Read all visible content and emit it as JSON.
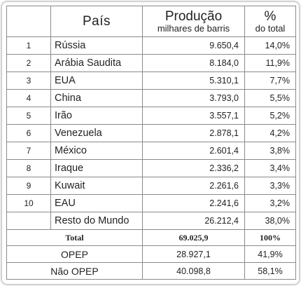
{
  "header": {
    "country": "País",
    "production": "Produção",
    "production_unit": "milhares de barris",
    "percent": "%",
    "percent_sub": "do total"
  },
  "rows": [
    {
      "rank": "1",
      "country": "Rússia",
      "production": "9.650,4",
      "percent": "14,0%"
    },
    {
      "rank": "2",
      "country": "Arábia Saudita",
      "production": "8.184,0",
      "percent": "11,9%"
    },
    {
      "rank": "3",
      "country": "EUA",
      "production": "5.310,1",
      "percent": "7,7%"
    },
    {
      "rank": "4",
      "country": "China",
      "production": "3.793,0",
      "percent": "5,5%"
    },
    {
      "rank": "5",
      "country": "Irão",
      "production": "3.557,1",
      "percent": "5,2%"
    },
    {
      "rank": "6",
      "country": "Venezuela",
      "production": "2.878,1",
      "percent": "4,2%"
    },
    {
      "rank": "7",
      "country": "México",
      "production": "2.601,4",
      "percent": "3,8%"
    },
    {
      "rank": "8",
      "country": "Iraque",
      "production": "2.336,2",
      "percent": "3,4%"
    },
    {
      "rank": "9",
      "country": "Kuwait",
      "production": "2.261,6",
      "percent": "3,3%"
    },
    {
      "rank": "10",
      "country": "EAU",
      "production": "2.241,6",
      "percent": "3,2%"
    },
    {
      "rank": "",
      "country": "Resto do Mundo",
      "production": "26.212,4",
      "percent": "38,0%"
    }
  ],
  "total": {
    "label": "Total",
    "production": "69.025,9",
    "percent": "100%"
  },
  "groups": [
    {
      "label": "OPEP",
      "production": "28.927,1",
      "percent": "41,9%"
    },
    {
      "label": "Não OPEP",
      "production": "40.098,8",
      "percent": "58,1%"
    }
  ]
}
